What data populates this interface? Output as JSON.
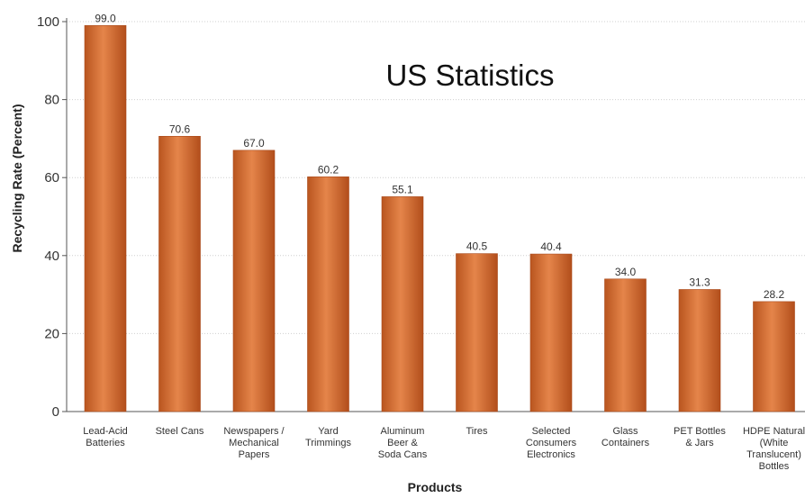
{
  "chart_data": {
    "type": "bar",
    "title": "US Statistics",
    "xlabel": "Products",
    "ylabel": "Recycling Rate (Percent)",
    "ylim": [
      0,
      100
    ],
    "yticks": [
      0,
      20,
      40,
      60,
      80,
      100
    ],
    "grid": true,
    "categories": [
      [
        "Lead-Acid",
        "Batteries"
      ],
      [
        "Steel Cans"
      ],
      [
        "Newspapers /",
        "Mechanical",
        "Papers"
      ],
      [
        "Yard",
        "Trimmings"
      ],
      [
        "Aluminum",
        "Beer &",
        "Soda Cans"
      ],
      [
        "Tires"
      ],
      [
        "Selected",
        "Consumers",
        "Electronics"
      ],
      [
        "Glass",
        "Containers"
      ],
      [
        "PET Bottles",
        "& Jars"
      ],
      [
        "HDPE Natural",
        "(White",
        "Translucent)",
        "Bottles"
      ]
    ],
    "values": [
      99.0,
      70.6,
      67.0,
      60.2,
      55.1,
      40.5,
      40.4,
      34.0,
      31.3,
      28.2
    ],
    "value_labels": [
      "99.0",
      "70.6",
      "67.0",
      "60.2",
      "55.1",
      "40.5",
      "40.4",
      "34.0",
      "31.3",
      "28.2"
    ],
    "bar_color": "#d9753a"
  }
}
